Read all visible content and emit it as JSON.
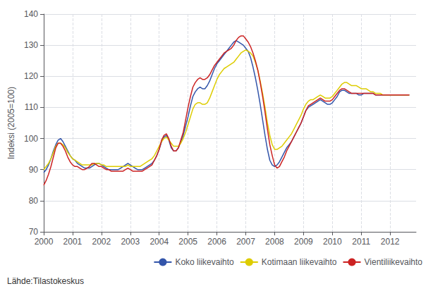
{
  "chart_data": {
    "type": "line",
    "ylabel": "Indeksi (2005=100)",
    "annotations": [
      "Lähde:Tilastokeskus"
    ],
    "xlim": [
      2000.0,
      2012.9
    ],
    "xticks": [
      2000,
      2001,
      2002,
      2003,
      2004,
      2005,
      2006,
      2007,
      2008,
      2009,
      2010,
      2011,
      2012
    ],
    "ylim": [
      70,
      140
    ],
    "yticks": [
      70,
      80,
      90,
      100,
      110,
      120,
      130,
      140
    ],
    "grid": true,
    "legend": "lower right",
    "x": [
      2000.0,
      2000.0833333333333,
      2000.1666666666667,
      2000.25,
      2000.3333333333333,
      2000.4166666666667,
      2000.5,
      2000.5833333333333,
      2000.6666666666667,
      2000.75,
      2000.8333333333333,
      2000.9166666666667,
      2001.0,
      2001.0833333333333,
      2001.1666666666667,
      2001.25,
      2001.3333333333333,
      2001.4166666666667,
      2001.5,
      2001.5833333333333,
      2001.6666666666667,
      2001.75,
      2001.8333333333333,
      2001.9166666666667,
      2002.0,
      2002.0833333333333,
      2002.1666666666667,
      2002.25,
      2002.3333333333333,
      2002.4166666666667,
      2002.5,
      2002.5833333333333,
      2002.6666666666667,
      2002.75,
      2002.8333333333333,
      2002.9166666666667,
      2003.0,
      2003.0833333333333,
      2003.1666666666667,
      2003.25,
      2003.3333333333333,
      2003.4166666666667,
      2003.5,
      2003.5833333333333,
      2003.6666666666667,
      2003.75,
      2003.8333333333333,
      2003.9166666666667,
      2004.0,
      2004.0833333333333,
      2004.1666666666667,
      2004.25,
      2004.3333333333333,
      2004.4166666666667,
      2004.5,
      2004.5833333333333,
      2004.6666666666667,
      2004.75,
      2004.8333333333333,
      2004.9166666666667,
      2005.0,
      2005.0833333333333,
      2005.1666666666667,
      2005.25,
      2005.3333333333333,
      2005.4166666666667,
      2005.5,
      2005.5833333333333,
      2005.6666666666667,
      2005.75,
      2005.8333333333333,
      2005.9166666666667,
      2006.0,
      2006.0833333333333,
      2006.1666666666667,
      2006.25,
      2006.3333333333333,
      2006.4166666666667,
      2006.5,
      2006.5833333333333,
      2006.6666666666667,
      2006.75,
      2006.8333333333333,
      2006.9166666666667,
      2007.0,
      2007.0833333333333,
      2007.1666666666667,
      2007.25,
      2007.3333333333333,
      2007.4166666666667,
      2007.5,
      2007.5833333333333,
      2007.6666666666667,
      2007.75,
      2007.8333333333333,
      2007.9166666666667,
      2008.0,
      2008.0833333333333,
      2008.1666666666667,
      2008.25,
      2008.3333333333333,
      2008.4166666666667,
      2008.5,
      2008.5833333333333,
      2008.6666666666667,
      2008.75,
      2008.8333333333333,
      2008.9166666666667,
      2009.0,
      2009.0833333333333,
      2009.1666666666667,
      2009.25,
      2009.3333333333333,
      2009.4166666666667,
      2009.5,
      2009.5833333333333,
      2009.6666666666667,
      2009.75,
      2009.8333333333333,
      2009.9166666666667,
      2010.0,
      2010.0833333333333,
      2010.1666666666667,
      2010.25,
      2010.3333333333333,
      2010.4166666666667,
      2010.5,
      2010.5833333333333,
      2010.6666666666667,
      2010.75,
      2010.8333333333333,
      2010.9166666666667,
      2011.0,
      2011.0833333333333,
      2011.1666666666667,
      2011.25,
      2011.3333333333333,
      2011.4166666666667,
      2011.5,
      2011.5833333333333,
      2011.6666666666667,
      2011.75,
      2011.8333333333333,
      2011.9166666666667,
      2012.0,
      2012.0833333333333,
      2012.1666666666667,
      2012.25,
      2012.3333333333333,
      2012.4166666666667,
      2012.5,
      2012.5833333333333,
      2012.6666666666667
    ],
    "series": [
      {
        "name": "Koko liikevaihto",
        "color": "#3355aa",
        "values": [
          89.0,
          90.0,
          91.5,
          93.5,
          96.0,
          98.0,
          99.5,
          100.0,
          99.0,
          97.5,
          96.0,
          94.5,
          93.5,
          93.0,
          92.0,
          91.5,
          91.0,
          90.5,
          90.5,
          90.5,
          91.0,
          91.5,
          92.0,
          92.0,
          91.5,
          91.0,
          90.5,
          90.0,
          90.0,
          90.0,
          90.0,
          90.0,
          90.5,
          91.0,
          91.5,
          92.0,
          91.5,
          91.0,
          90.5,
          90.0,
          90.0,
          90.0,
          90.5,
          91.0,
          91.5,
          92.0,
          93.0,
          94.5,
          96.5,
          99.0,
          100.5,
          101.0,
          99.5,
          97.0,
          96.0,
          96.0,
          97.0,
          99.0,
          101.0,
          104.0,
          107.0,
          110.5,
          113.5,
          115.0,
          116.0,
          116.5,
          116.0,
          116.0,
          117.0,
          118.5,
          120.5,
          122.5,
          124.0,
          125.0,
          126.0,
          127.0,
          128.0,
          129.0,
          130.0,
          131.0,
          131.5,
          131.0,
          130.5,
          130.0,
          129.0,
          128.0,
          126.0,
          123.0,
          119.5,
          115.5,
          111.0,
          106.0,
          101.0,
          96.5,
          93.0,
          91.5,
          91.0,
          91.5,
          92.5,
          94.0,
          95.5,
          97.0,
          98.0,
          99.0,
          100.5,
          102.0,
          103.5,
          105.0,
          107.0,
          109.0,
          110.0,
          110.5,
          111.0,
          111.5,
          112.0,
          112.5,
          112.0,
          111.5,
          111.0,
          111.0,
          111.5,
          112.5,
          113.5,
          115.0,
          115.5,
          115.5,
          115.0,
          114.5,
          114.5,
          114.5,
          114.5,
          114.0,
          114.0,
          114.5,
          114.5,
          114.5,
          114.5,
          114.5,
          114.0,
          114.0,
          114.0,
          114.0,
          114.0,
          114.0,
          114.0,
          114.0,
          114.0,
          114.0,
          114.0,
          114.0,
          114.0,
          114.0,
          114.0
        ]
      },
      {
        "name": "Kotimaan liikevaihto",
        "color": "#ddcc00",
        "values": [
          90.0,
          91.0,
          92.0,
          93.5,
          95.5,
          97.5,
          98.5,
          98.5,
          98.0,
          97.0,
          95.5,
          94.5,
          93.5,
          93.0,
          92.5,
          92.0,
          91.5,
          91.5,
          91.5,
          91.5,
          91.5,
          92.0,
          92.0,
          92.0,
          91.5,
          91.5,
          91.0,
          91.0,
          91.0,
          91.0,
          91.0,
          91.0,
          91.0,
          91.0,
          91.0,
          91.5,
          91.0,
          91.0,
          91.0,
          91.0,
          91.0,
          91.5,
          92.0,
          92.5,
          93.0,
          93.5,
          94.5,
          96.0,
          97.5,
          99.0,
          100.0,
          100.5,
          99.5,
          98.5,
          97.5,
          97.5,
          97.5,
          98.5,
          100.0,
          102.0,
          104.5,
          107.0,
          109.5,
          111.0,
          111.5,
          111.5,
          111.0,
          111.0,
          111.5,
          113.0,
          115.0,
          117.0,
          119.0,
          120.5,
          121.5,
          122.5,
          123.0,
          123.5,
          124.0,
          124.5,
          125.5,
          126.5,
          127.5,
          128.0,
          128.5,
          128.0,
          127.5,
          126.5,
          124.5,
          122.0,
          118.5,
          114.5,
          110.0,
          105.0,
          101.0,
          98.0,
          96.5,
          96.5,
          97.0,
          97.5,
          98.5,
          99.5,
          100.5,
          101.5,
          103.0,
          104.5,
          106.0,
          107.5,
          109.5,
          111.0,
          112.0,
          112.5,
          112.5,
          113.0,
          113.5,
          114.0,
          113.5,
          113.0,
          113.0,
          113.0,
          113.5,
          114.5,
          115.5,
          116.5,
          117.5,
          118.0,
          118.0,
          117.5,
          117.0,
          117.0,
          117.0,
          116.5,
          116.0,
          116.0,
          116.0,
          115.5,
          115.0,
          115.0,
          114.5,
          114.5,
          114.5,
          114.0,
          114.0,
          114.0,
          114.0,
          114.0,
          114.0,
          114.0,
          114.0,
          114.0,
          114.0,
          114.0,
          114.0
        ]
      },
      {
        "name": "Vientiliikevaihto",
        "color": "#cc2222",
        "values": [
          85.0,
          86.5,
          88.5,
          91.0,
          94.0,
          97.0,
          98.5,
          98.5,
          97.5,
          96.0,
          94.0,
          92.5,
          91.5,
          91.0,
          91.0,
          90.5,
          90.0,
          90.0,
          90.5,
          91.0,
          92.0,
          92.0,
          91.5,
          91.0,
          91.0,
          90.5,
          90.0,
          90.0,
          89.5,
          89.5,
          89.5,
          89.5,
          89.5,
          89.5,
          90.0,
          90.5,
          90.0,
          89.5,
          89.5,
          89.5,
          89.5,
          89.5,
          90.0,
          90.5,
          91.0,
          91.5,
          93.0,
          94.5,
          96.5,
          99.5,
          101.0,
          101.5,
          100.0,
          97.5,
          96.0,
          96.0,
          97.0,
          99.5,
          102.0,
          106.0,
          110.0,
          113.5,
          116.5,
          118.0,
          119.0,
          119.5,
          119.0,
          119.0,
          119.5,
          120.5,
          122.0,
          123.5,
          124.5,
          125.5,
          126.5,
          127.5,
          128.0,
          128.5,
          129.0,
          130.0,
          131.5,
          132.5,
          133.0,
          133.0,
          132.0,
          131.0,
          129.5,
          127.5,
          125.0,
          122.0,
          118.0,
          113.5,
          108.5,
          103.0,
          98.0,
          94.5,
          91.5,
          90.5,
          91.0,
          92.5,
          94.0,
          96.0,
          97.5,
          99.0,
          100.5,
          102.0,
          103.5,
          105.0,
          107.0,
          109.0,
          110.5,
          111.0,
          111.5,
          112.0,
          112.5,
          113.0,
          112.5,
          112.0,
          112.0,
          112.0,
          112.5,
          113.5,
          114.5,
          115.5,
          116.0,
          116.0,
          115.5,
          115.0,
          114.5,
          114.5,
          114.5,
          114.5,
          114.5,
          114.5,
          114.5,
          114.5,
          114.5,
          114.5,
          114.0,
          114.0,
          114.0,
          114.0,
          114.0,
          114.0,
          114.0,
          114.0,
          114.0,
          114.0,
          114.0,
          114.0,
          114.0,
          114.0,
          114.0
        ]
      }
    ]
  }
}
